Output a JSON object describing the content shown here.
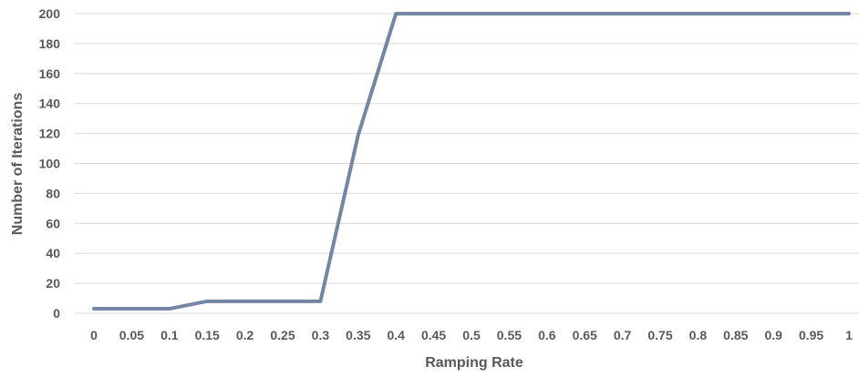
{
  "chart_data": {
    "type": "line",
    "title": "",
    "xlabel": "Ramping Rate",
    "ylabel": "Number of Iterations",
    "categories": [
      "0",
      "0.05",
      "0.1",
      "0.15",
      "0.2",
      "0.25",
      "0.3",
      "0.35",
      "0.4",
      "0.45",
      "0.5",
      "0.55",
      "0.6",
      "0.65",
      "0.7",
      "0.75",
      "0.8",
      "0.85",
      "0.9",
      "0.95",
      "1"
    ],
    "series": [
      {
        "values": [
          3,
          3,
          3,
          8,
          8,
          8,
          8,
          119,
          200,
          200,
          200,
          200,
          200,
          200,
          200,
          200,
          200,
          200,
          200,
          200,
          200
        ],
        "color": "#7486a6"
      }
    ],
    "ylim": [
      0,
      200
    ],
    "yticks": [
      "0",
      "20",
      "40",
      "60",
      "80",
      "100",
      "120",
      "140",
      "160",
      "180",
      "200"
    ],
    "grid": "horizontal",
    "legend": "none"
  }
}
